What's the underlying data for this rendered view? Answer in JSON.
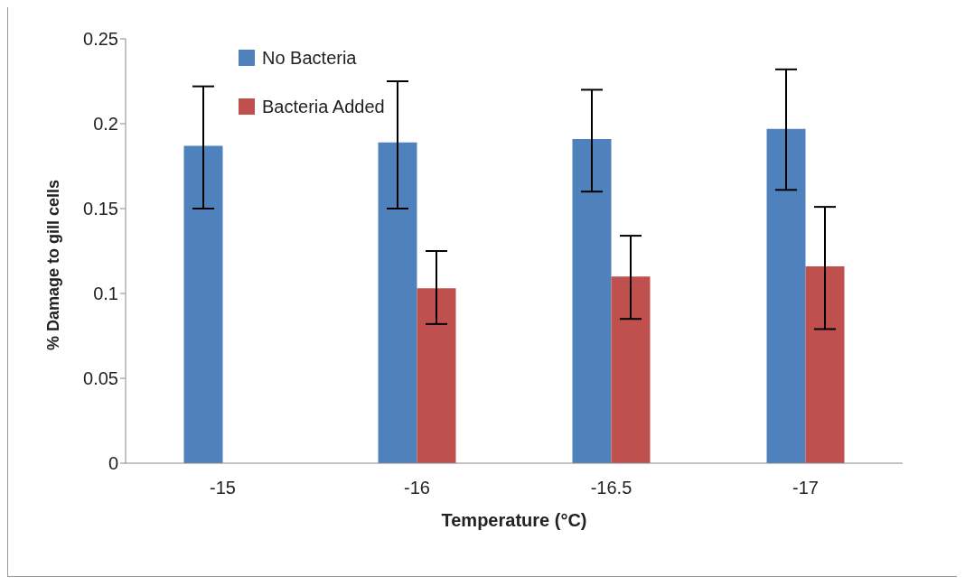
{
  "chart_data": {
    "type": "bar",
    "xlabel": "Temperature (°C)",
    "ylabel": "% Damage to gill cells",
    "categories": [
      "-15",
      "-16",
      "-16.5",
      "-17"
    ],
    "series": [
      {
        "name": "No Bacteria",
        "color": "#4f81bd",
        "values": [
          0.187,
          0.189,
          0.191,
          0.197
        ],
        "errors": [
          [
            0.15,
            0.222
          ],
          [
            0.15,
            0.225
          ],
          [
            0.16,
            0.22
          ],
          [
            0.161,
            0.232
          ]
        ]
      },
      {
        "name": "Bacteria Added",
        "color": "#c0504d",
        "values": [
          null,
          0.103,
          0.11,
          0.116
        ],
        "errors": [
          null,
          [
            0.082,
            0.125
          ],
          [
            0.085,
            0.134
          ],
          [
            0.079,
            0.151
          ]
        ]
      }
    ],
    "ylim": [
      0,
      0.25
    ],
    "yticks": [
      0,
      0.05,
      0.1,
      0.15,
      0.2,
      0.25
    ],
    "grid": false,
    "legend": "top left"
  }
}
